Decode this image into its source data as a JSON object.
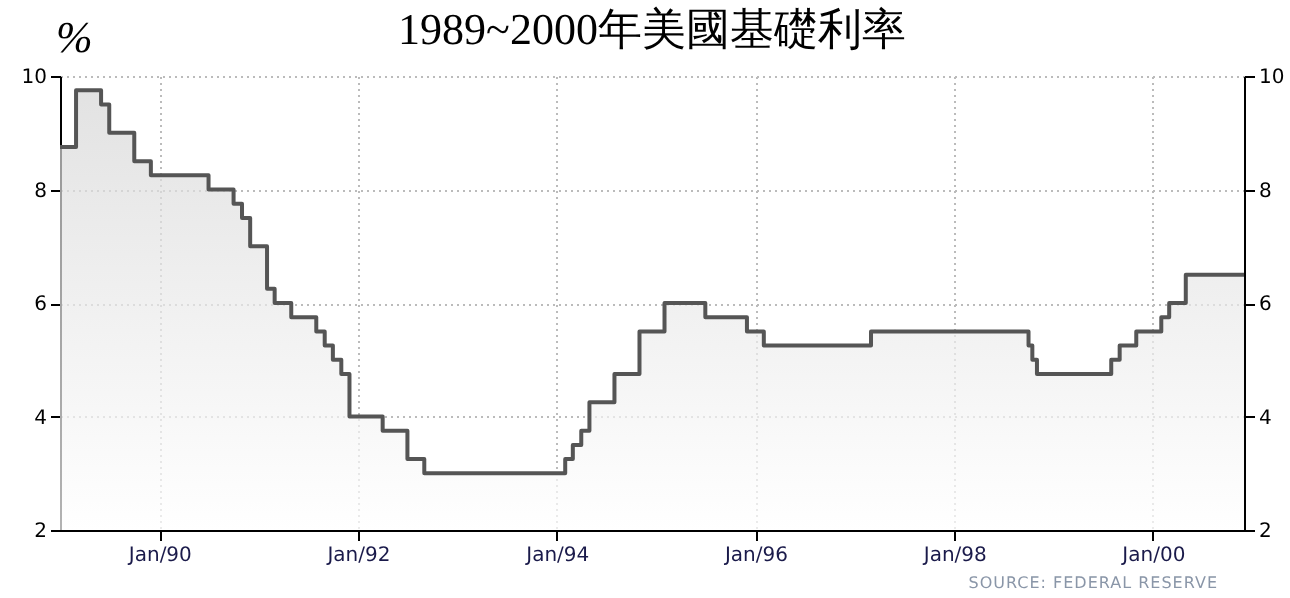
{
  "chart_data": {
    "type": "area",
    "title": "1989~2000年美國基礎利率",
    "ylabel": "%",
    "x": [
      "1989-01-01",
      "1989-03-01",
      "1989-03-01",
      "1989-06-01",
      "1989-06-01",
      "1989-07-01",
      "1989-07-01",
      "1989-10-01",
      "1989-10-01",
      "1989-12-01",
      "1989-12-01",
      "1990-07-01",
      "1990-07-01",
      "1990-10-01",
      "1990-10-01",
      "1990-11-01",
      "1990-11-01",
      "1990-12-01",
      "1990-12-01",
      "1991-02-01",
      "1991-02-01",
      "1991-03-01",
      "1991-03-01",
      "1991-05-01",
      "1991-05-01",
      "1991-08-01",
      "1991-08-01",
      "1991-09-01",
      "1991-09-01",
      "1991-10-01",
      "1991-10-01",
      "1991-11-01",
      "1991-11-01",
      "1991-12-01",
      "1991-12-01",
      "1992-04-01",
      "1992-04-01",
      "1992-07-01",
      "1992-07-01",
      "1992-09-01",
      "1992-09-01",
      "1994-02-01",
      "1994-02-01",
      "1994-03-01",
      "1994-03-01",
      "1994-04-01",
      "1994-04-01",
      "1994-05-01",
      "1994-05-01",
      "1994-08-01",
      "1994-08-01",
      "1994-11-01",
      "1994-11-01",
      "1995-02-01",
      "1995-02-01",
      "1995-07-01",
      "1995-07-01",
      "1995-12-01",
      "1995-12-01",
      "1996-02-01",
      "1996-02-01",
      "1997-03-01",
      "1997-03-01",
      "1998-10-01",
      "1998-10-01",
      "1998-10-15",
      "1998-10-15",
      "1998-11-01",
      "1998-11-01",
      "1999-08-01",
      "1999-08-01",
      "1999-09-01",
      "1999-09-01",
      "1999-11-01",
      "1999-11-01",
      "2000-02-01",
      "2000-02-01",
      "2000-03-01",
      "2000-03-01",
      "2000-05-01",
      "2000-05-01",
      "2000-12-01"
    ],
    "series": [
      {
        "color": "#555555",
        "values": [
          8.75,
          8.75,
          9.75,
          9.75,
          9.5,
          9.5,
          9.0,
          9.0,
          8.5,
          8.5,
          8.25,
          8.25,
          8.0,
          8.0,
          7.75,
          7.75,
          7.5,
          7.5,
          7.0,
          7.0,
          6.25,
          6.25,
          6.0,
          6.0,
          5.75,
          5.75,
          5.5,
          5.5,
          5.25,
          5.25,
          5.0,
          5.0,
          4.75,
          4.75,
          4.0,
          4.0,
          3.75,
          3.75,
          3.25,
          3.25,
          3.0,
          3.0,
          3.25,
          3.25,
          3.5,
          3.5,
          3.75,
          3.75,
          4.25,
          4.25,
          4.75,
          4.75,
          5.5,
          5.5,
          6.0,
          6.0,
          5.75,
          5.75,
          5.5,
          5.5,
          5.25,
          5.25,
          5.5,
          5.5,
          5.25,
          5.25,
          5.0,
          5.0,
          4.75,
          4.75,
          5.0,
          5.0,
          5.25,
          5.25,
          5.5,
          5.5,
          5.75,
          5.75,
          6.0,
          6.0,
          6.5,
          6.5
        ]
      }
    ],
    "xlim": [
      "1989-01-01",
      "2000-12-01"
    ],
    "xticks": [
      {
        "value": "1990-01-01",
        "label": "Jan/90"
      },
      {
        "value": "1992-01-01",
        "label": "Jan/92"
      },
      {
        "value": "1994-01-01",
        "label": "Jan/94"
      },
      {
        "value": "1996-01-01",
        "label": "Jan/96"
      },
      {
        "value": "1998-01-01",
        "label": "Jan/98"
      },
      {
        "value": "2000-01-01",
        "label": "Jan/00"
      }
    ],
    "ylim": [
      2,
      10
    ],
    "yticks": [
      2,
      4,
      6,
      8,
      10
    ],
    "y2lim": [
      2,
      10
    ],
    "y2ticks": [
      2,
      4,
      6,
      8,
      10
    ],
    "grid": true,
    "annotations": [
      "SOURCE: FEDERAL RESERVE"
    ]
  }
}
